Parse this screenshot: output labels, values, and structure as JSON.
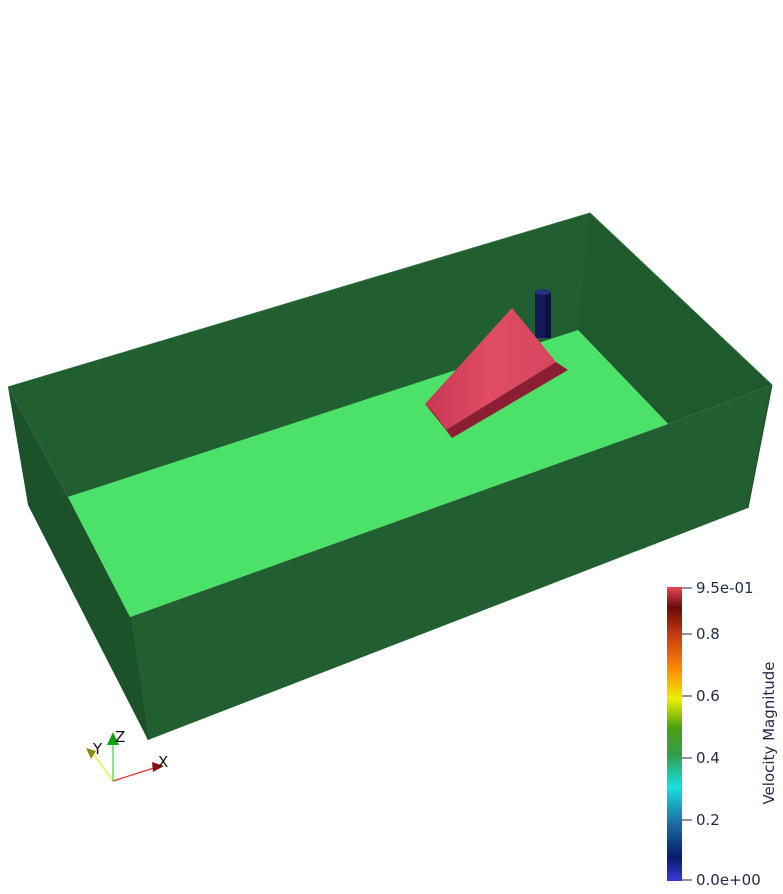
{
  "scalar_bar": {
    "title": "Velocity Magnitude",
    "max_label": "9.5e-01",
    "min_label": "0.0e+00",
    "ticks": [
      {
        "value": 0.8,
        "label": "0.8"
      },
      {
        "value": 0.6,
        "label": "0.6"
      },
      {
        "value": 0.4,
        "label": "0.4"
      },
      {
        "value": 0.2,
        "label": "0.2"
      }
    ],
    "range": [
      0.0,
      0.95
    ],
    "colormap": [
      "#3b3bd6",
      "#0a1a6e",
      "#1a6fa8",
      "#18e0e0",
      "#2fa04a",
      "#4aa010",
      "#eef000",
      "#ff8a00",
      "#c23a10",
      "#6a0a0a",
      "#e8485a"
    ]
  },
  "orientation_axes": {
    "x_label": "X",
    "y_label": "Y",
    "z_label": "Z"
  },
  "colors": {
    "tank_wall": "#215e30",
    "tank_wall_dark": "#1b5028",
    "water_surface": "#4ce26a",
    "wedge": "#d9435d",
    "wedge_shadow": "#8c1e34",
    "pillar": "#13185a"
  }
}
